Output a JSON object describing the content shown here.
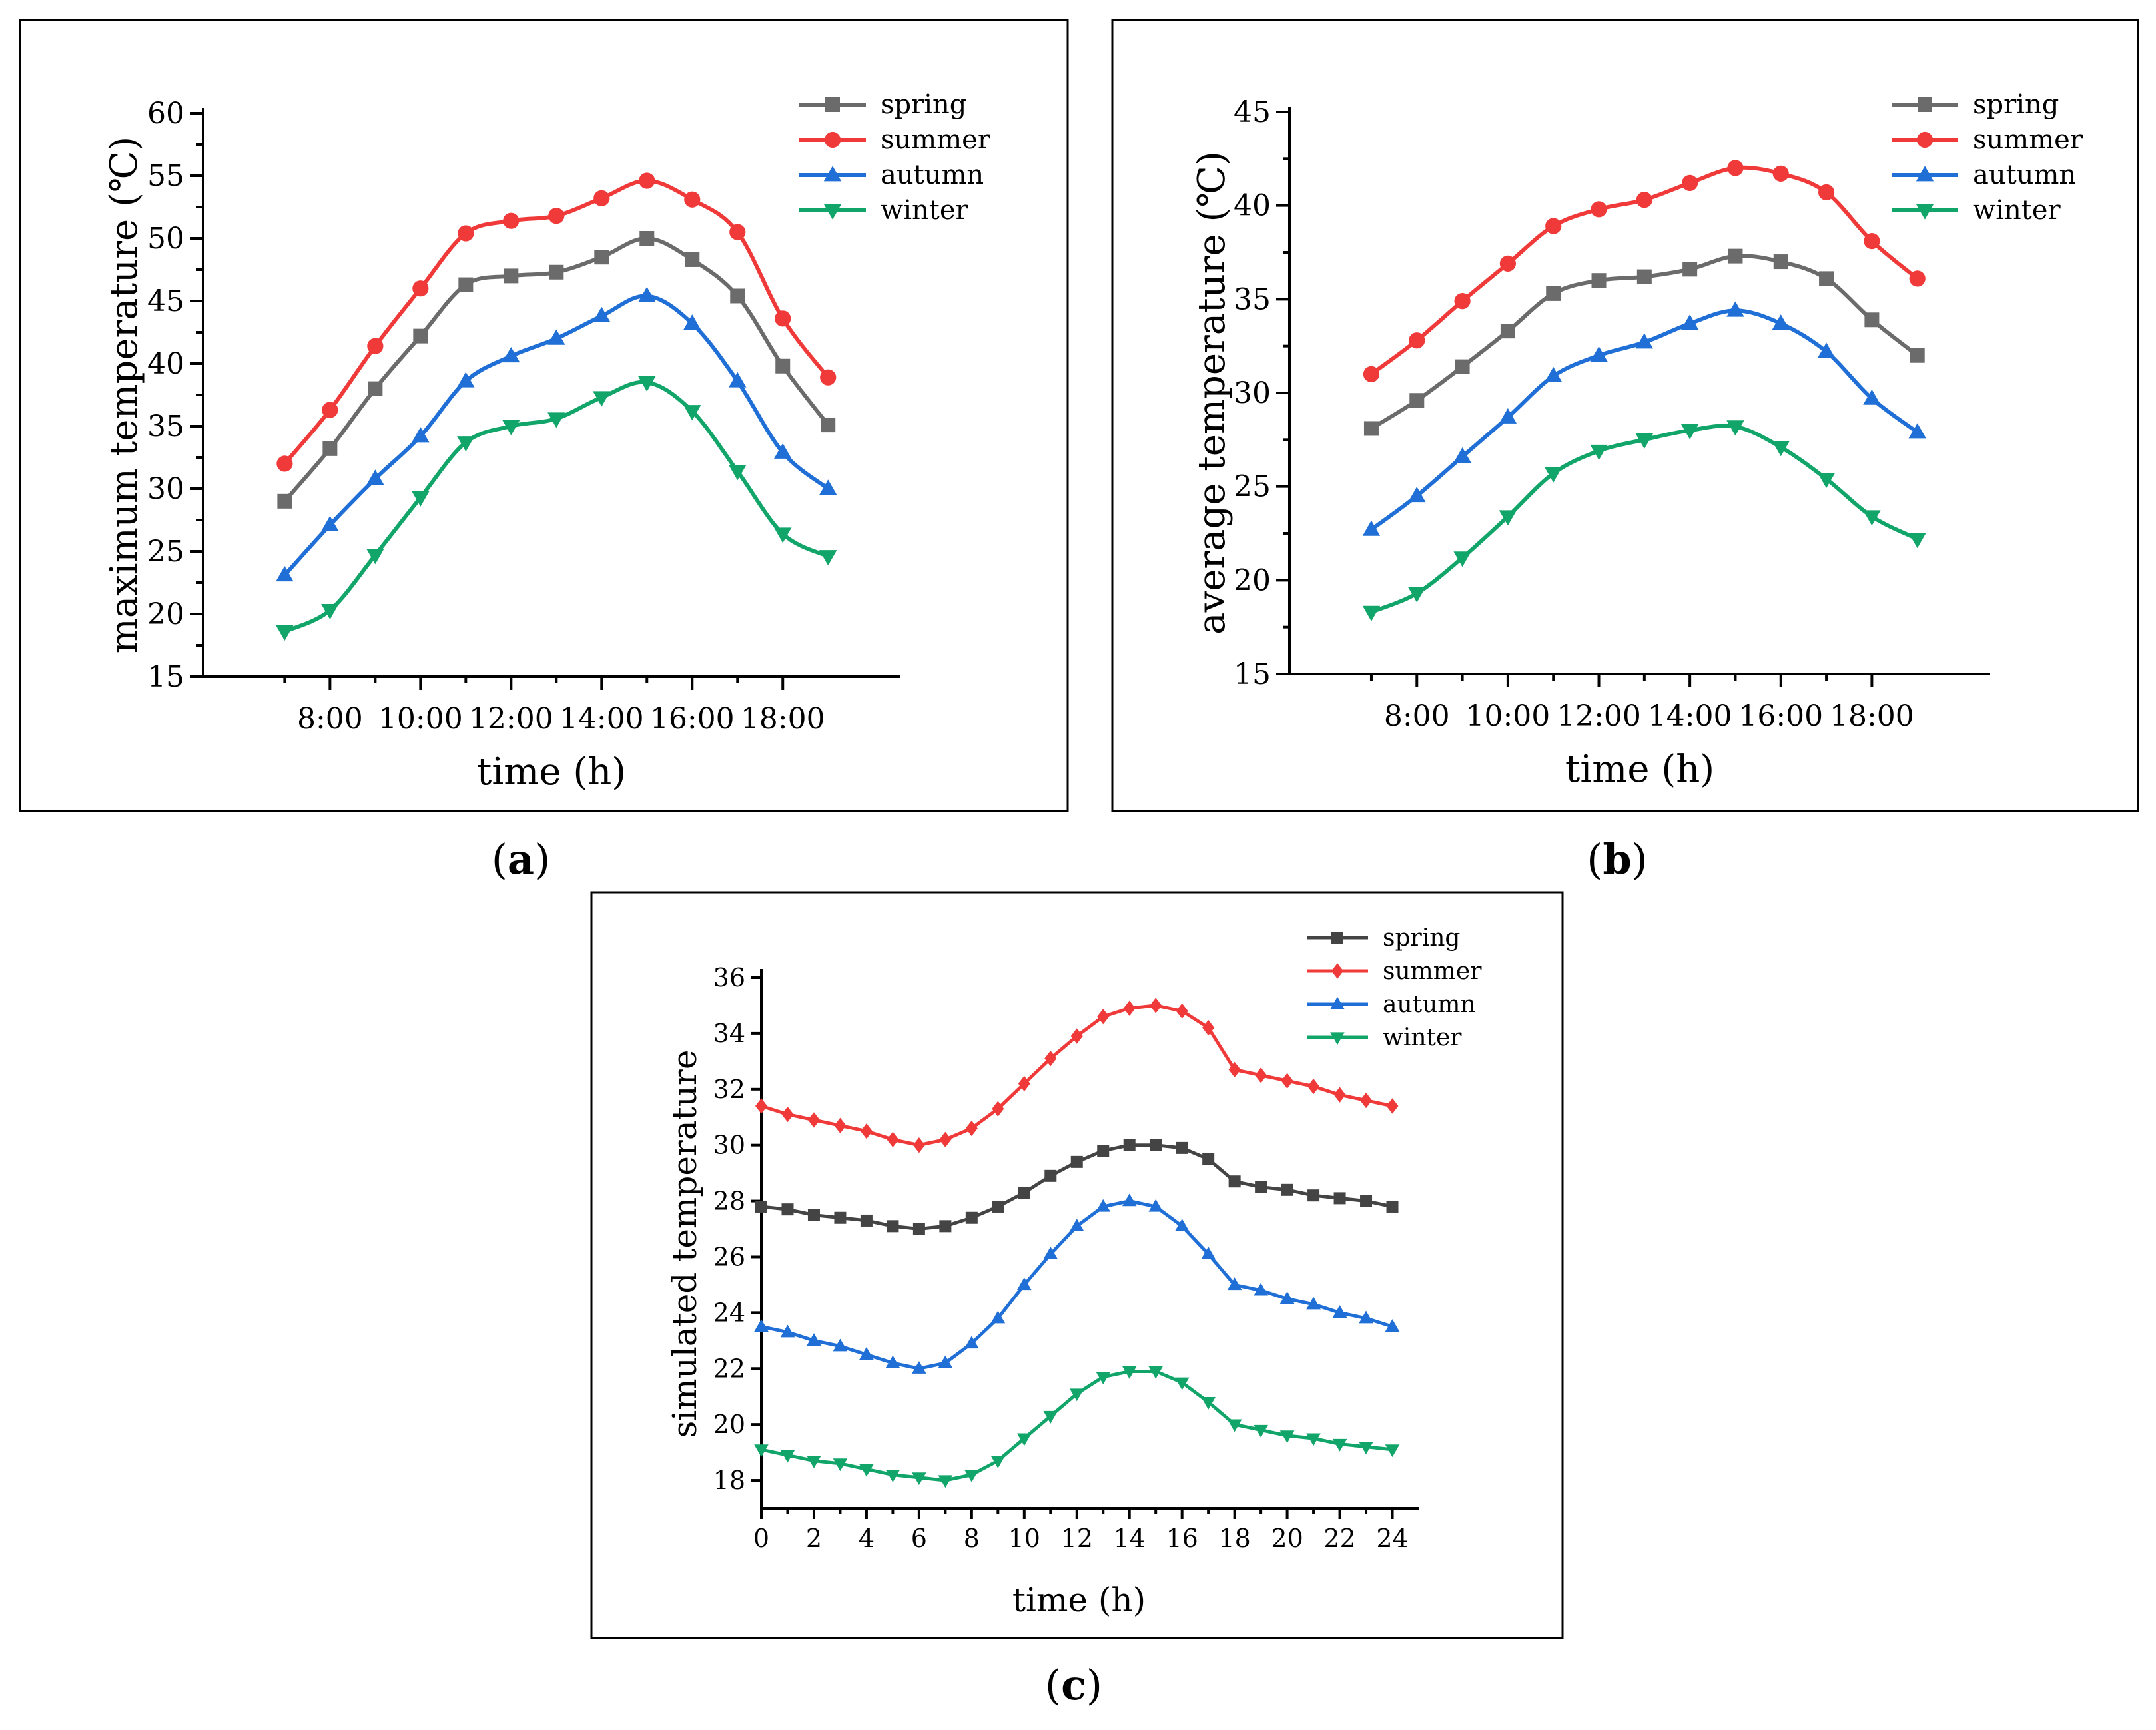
{
  "chart_data": [
    {
      "id": "a",
      "type": "line",
      "caption": "(a)",
      "caption_letter": "a",
      "xlabel": "time (h)",
      "ylabel": "maximum temperature (℃)",
      "x": [
        7,
        8,
        9,
        10,
        11,
        12,
        13,
        14,
        15,
        16,
        17,
        18,
        19
      ],
      "xlim": [
        5.2,
        20.6
      ],
      "xticks": [
        8,
        10,
        12,
        14,
        16,
        18
      ],
      "xtick_labels": [
        "8:00",
        "10:00",
        "12:00",
        "14:00",
        "16:00",
        "18:00"
      ],
      "ylim": [
        15,
        60
      ],
      "yticks": [
        15,
        20,
        25,
        30,
        35,
        40,
        45,
        50,
        55,
        60
      ],
      "legend_position": "top-right",
      "series": [
        {
          "name": "spring",
          "color": "#6b6b6b",
          "marker": "square",
          "values": [
            29.0,
            33.2,
            38.0,
            42.2,
            46.3,
            47.0,
            47.3,
            48.5,
            50.0,
            48.3,
            45.4,
            39.8,
            35.1
          ]
        },
        {
          "name": "summer",
          "color": "#f03a3a",
          "marker": "circle",
          "values": [
            32.0,
            36.3,
            41.4,
            46.0,
            50.4,
            51.4,
            51.8,
            53.2,
            54.6,
            53.1,
            50.5,
            43.6,
            38.9
          ]
        },
        {
          "name": "autumn",
          "color": "#1f6fd6",
          "marker": "triangle-up",
          "values": [
            23.1,
            27.1,
            30.8,
            34.2,
            38.6,
            40.6,
            42.0,
            43.8,
            45.4,
            43.2,
            38.6,
            32.9,
            30.0
          ]
        },
        {
          "name": "winter",
          "color": "#12a56a",
          "marker": "triangle-down",
          "values": [
            18.6,
            20.3,
            24.7,
            29.3,
            33.7,
            35.0,
            35.6,
            37.3,
            38.5,
            36.2,
            31.4,
            26.4,
            24.6
          ]
        }
      ]
    },
    {
      "id": "b",
      "type": "line",
      "caption": "(b)",
      "caption_letter": "b",
      "xlabel": "time (h)",
      "ylabel": "average temperature (℃)",
      "x": [
        7,
        8,
        9,
        10,
        11,
        12,
        13,
        14,
        15,
        16,
        17,
        18,
        19
      ],
      "xlim": [
        5.2,
        20.6
      ],
      "xticks": [
        8,
        10,
        12,
        14,
        16,
        18
      ],
      "xtick_labels": [
        "8:00",
        "10:00",
        "12:00",
        "14:00",
        "16:00",
        "18:00"
      ],
      "ylim": [
        15,
        45
      ],
      "yticks": [
        15,
        20,
        25,
        30,
        35,
        40,
        45
      ],
      "legend_position": "top-right",
      "series": [
        {
          "name": "spring",
          "color": "#6b6b6b",
          "marker": "square",
          "values": [
            28.1,
            29.6,
            31.4,
            33.3,
            35.3,
            36.0,
            36.2,
            36.6,
            37.3,
            37.0,
            36.1,
            33.9,
            32.0
          ]
        },
        {
          "name": "summer",
          "color": "#f03a3a",
          "marker": "circle",
          "values": [
            31.0,
            32.8,
            34.9,
            36.9,
            38.9,
            39.8,
            40.3,
            41.2,
            42.0,
            41.7,
            40.7,
            38.1,
            36.1
          ]
        },
        {
          "name": "autumn",
          "color": "#1f6fd6",
          "marker": "triangle-up",
          "values": [
            22.7,
            24.5,
            26.6,
            28.7,
            30.9,
            32.0,
            32.7,
            33.7,
            34.4,
            33.7,
            32.2,
            29.7,
            27.9
          ]
        },
        {
          "name": "winter",
          "color": "#12a56a",
          "marker": "triangle-down",
          "values": [
            18.3,
            19.3,
            21.2,
            23.4,
            25.7,
            26.9,
            27.5,
            28.0,
            28.2,
            27.1,
            25.4,
            23.4,
            22.2
          ]
        }
      ]
    },
    {
      "id": "c",
      "type": "line",
      "caption": "(c)",
      "caption_letter": "c",
      "xlabel": "time (h)",
      "ylabel": "simulated temperature",
      "x": [
        0,
        1,
        2,
        3,
        4,
        5,
        6,
        7,
        8,
        9,
        10,
        11,
        12,
        13,
        14,
        15,
        16,
        17,
        18,
        19,
        20,
        21,
        22,
        23,
        24
      ],
      "xlim": [
        0,
        25
      ],
      "xticks": [
        0,
        2,
        4,
        6,
        8,
        10,
        12,
        14,
        16,
        18,
        20,
        22,
        24
      ],
      "xtick_labels": [
        "0",
        "2",
        "4",
        "6",
        "8",
        "10",
        "12",
        "14",
        "16",
        "18",
        "20",
        "22",
        "24"
      ],
      "ylim": [
        17,
        36
      ],
      "yticks": [
        18,
        20,
        22,
        24,
        26,
        28,
        30,
        32,
        34,
        36
      ],
      "legend_position": "top-right",
      "series": [
        {
          "name": "spring",
          "color": "#444444",
          "marker": "square",
          "values": [
            27.8,
            27.7,
            27.5,
            27.4,
            27.3,
            27.1,
            27.0,
            27.1,
            27.4,
            27.8,
            28.3,
            28.9,
            29.4,
            29.8,
            30.0,
            30.0,
            29.9,
            29.5,
            28.7,
            28.5,
            28.4,
            28.2,
            28.1,
            28.0,
            27.8
          ]
        },
        {
          "name": "summer",
          "color": "#f03a3a",
          "marker": "diamond",
          "values": [
            31.4,
            31.1,
            30.9,
            30.7,
            30.5,
            30.2,
            30.0,
            30.2,
            30.6,
            31.3,
            32.2,
            33.1,
            33.9,
            34.6,
            34.9,
            35.0,
            34.8,
            34.2,
            32.7,
            32.5,
            32.3,
            32.1,
            31.8,
            31.6,
            31.4
          ]
        },
        {
          "name": "autumn",
          "color": "#1f6fd6",
          "marker": "triangle-up",
          "values": [
            23.5,
            23.3,
            23.0,
            22.8,
            22.5,
            22.2,
            22.0,
            22.2,
            22.9,
            23.8,
            25.0,
            26.1,
            27.1,
            27.8,
            28.0,
            27.8,
            27.1,
            26.1,
            25.0,
            24.8,
            24.5,
            24.3,
            24.0,
            23.8,
            23.5
          ]
        },
        {
          "name": "winter",
          "color": "#12a56a",
          "marker": "triangle-down",
          "values": [
            19.1,
            18.9,
            18.7,
            18.6,
            18.4,
            18.2,
            18.1,
            18.0,
            18.2,
            18.7,
            19.5,
            20.3,
            21.1,
            21.7,
            21.9,
            21.9,
            21.5,
            20.8,
            20.0,
            19.8,
            19.6,
            19.5,
            19.3,
            19.2,
            19.1
          ]
        }
      ]
    }
  ]
}
